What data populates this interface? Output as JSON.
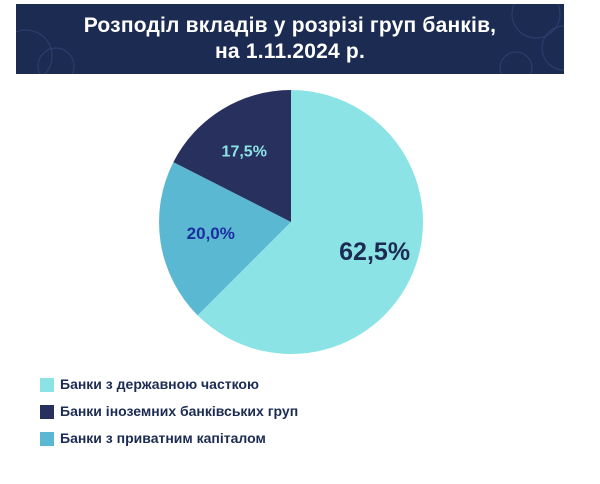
{
  "header": {
    "title_line1": "Розподіл вкладів у розрізі груп банків,",
    "title_line2": "на 1.11.2024 р.",
    "background": "#1b2b52"
  },
  "chart_data": {
    "type": "pie",
    "title": "Розподіл вкладів у розрізі груп банків, на 1.11.2024 р.",
    "slices": [
      {
        "name": "Банки з державною часткою",
        "value": 62.5,
        "label": "62,5%",
        "color": "#8ce3e6",
        "label_color": "#1b2b52"
      },
      {
        "name": "Банки з приватним капіталом",
        "value": 20.0,
        "label": "20,0%",
        "color": "#5bb8d3",
        "label_color": "#1b2fa0"
      },
      {
        "name": "Банки іноземних банківських груп",
        "value": 17.5,
        "label": "17,5%",
        "color": "#28305e",
        "label_color": "#8ce3e6"
      }
    ],
    "start_angle": "12 o'clock",
    "direction": "clockwise",
    "legend_placement": "bottom-left",
    "legend": [
      {
        "label": "Банки з державною часткою",
        "color": "#8ce3e6"
      },
      {
        "label": "Банки іноземних банківських груп",
        "color": "#28305e"
      },
      {
        "label": "Банки з приватним капіталом",
        "color": "#5bb8d3"
      }
    ]
  }
}
